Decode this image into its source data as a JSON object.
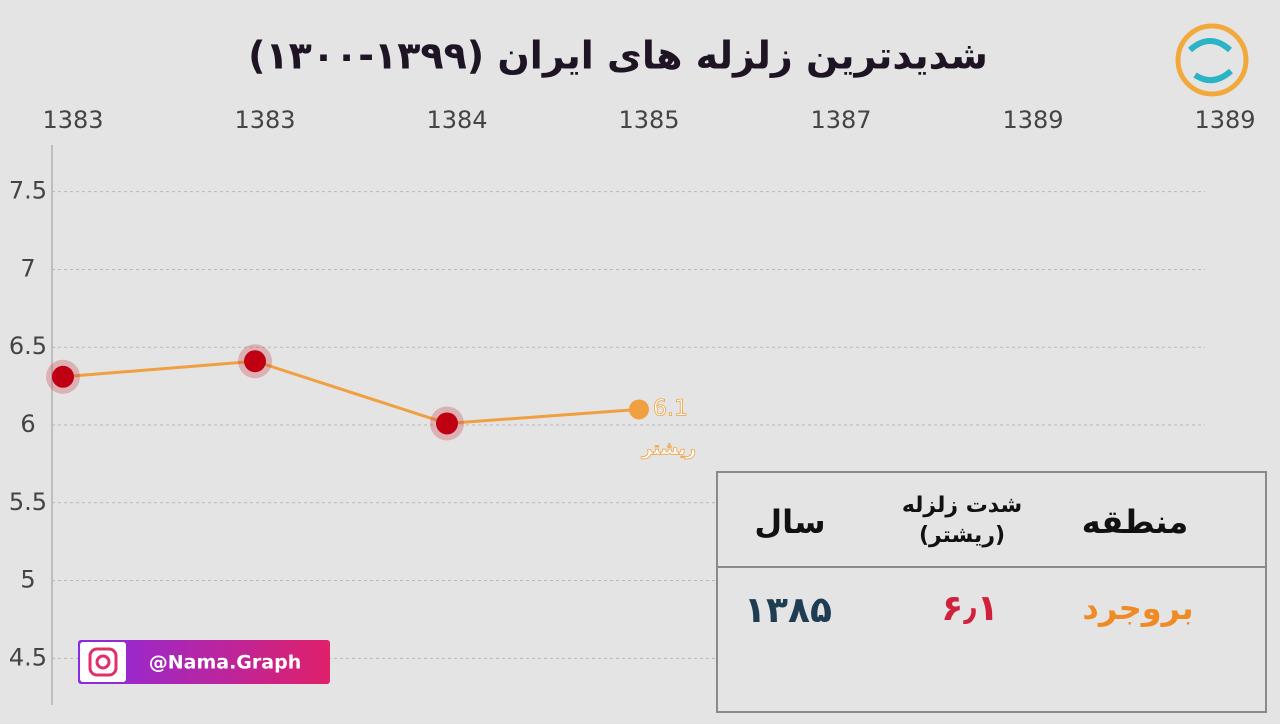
{
  "chart_data": {
    "type": "line",
    "title": "شدیدترین زلزله های ایران (۱۳۹۹-۱۳۰۰)",
    "categories": [
      "1383",
      "1383",
      "1384",
      "1385",
      "1387",
      "1389",
      "1389"
    ],
    "series": [
      {
        "color": "#f0a040",
        "values": [
          6.31,
          6.41,
          6.01,
          6.1,
          null,
          null,
          null
        ]
      }
    ],
    "annotation": "ریشتر",
    "ylim": [
      4.2,
      7.8
    ],
    "yticks": [
      4.5,
      5,
      5.5,
      6,
      6.5,
      7,
      7.5
    ],
    "grid": true
  },
  "table": {
    "header": [
      "سال",
      "شدت زلزله\n(ریشتر)",
      "منطقه"
    ],
    "rows": [
      [
        "۱۳۸۵",
        "۶٫۱",
        "بروجرد"
      ]
    ]
  },
  "badge": "@Nama.Graph"
}
